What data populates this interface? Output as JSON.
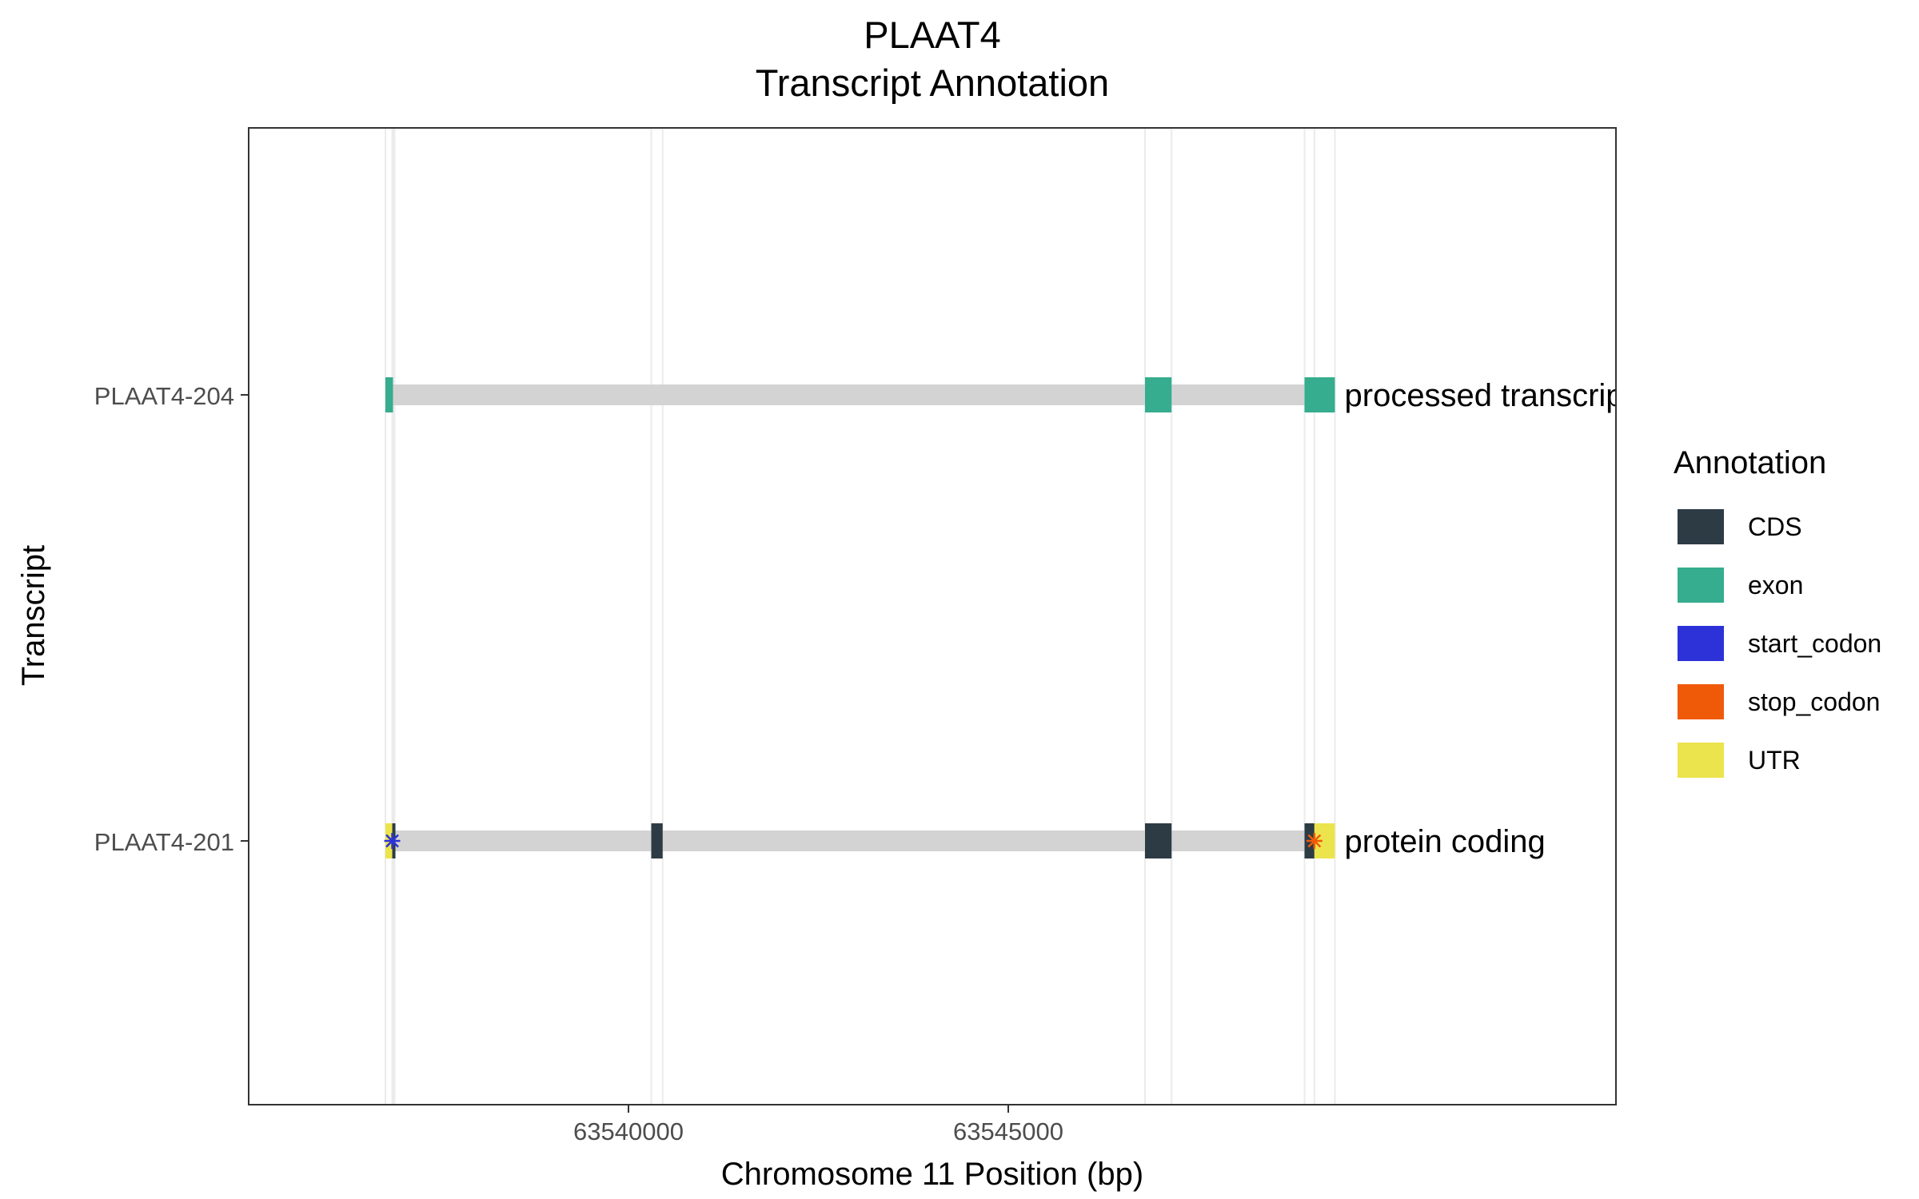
{
  "chart_data": {
    "type": "gene-track",
    "title": "PLAAT4",
    "subtitle": "Transcript Annotation",
    "xlabel": "Chromosome 11 Position (bp)",
    "ylabel": "Transcript",
    "xlim": [
      63535000,
      63553000
    ],
    "xticks": [
      63540000,
      63545000
    ],
    "xtick_labels": [
      "63540000",
      "63545000"
    ],
    "grid": true,
    "legend": {
      "title": "Annotation",
      "position": "right",
      "entries": [
        {
          "label": "CDS",
          "color": "#2d3b45"
        },
        {
          "label": "exon",
          "color": "#35ad8e"
        },
        {
          "label": "start_codon",
          "color": "#2c32d8"
        },
        {
          "label": "stop_codon",
          "color": "#ef5a09"
        },
        {
          "label": "UTR",
          "color": "#ece44c"
        }
      ]
    },
    "intron_color": "#d3d3d3",
    "transcripts": [
      {
        "name": "PLAAT4-204",
        "biotype_label": "processed transcript",
        "start": 63536800,
        "end": 63549300,
        "features": [
          {
            "type": "exon",
            "start": 63536800,
            "end": 63536900
          },
          {
            "type": "exon",
            "start": 63546800,
            "end": 63547150
          },
          {
            "type": "exon",
            "start": 63548900,
            "end": 63549300
          }
        ]
      },
      {
        "name": "PLAAT4-201",
        "biotype_label": "protein coding",
        "start": 63536800,
        "end": 63549300,
        "features": [
          {
            "type": "UTR",
            "start": 63536800,
            "end": 63536890
          },
          {
            "type": "CDS",
            "start": 63536890,
            "end": 63536920
          },
          {
            "type": "CDS",
            "start": 63540300,
            "end": 63540450
          },
          {
            "type": "CDS",
            "start": 63546800,
            "end": 63547150
          },
          {
            "type": "CDS",
            "start": 63548900,
            "end": 63549030
          },
          {
            "type": "UTR",
            "start": 63549030,
            "end": 63549300
          },
          {
            "type": "start_codon",
            "position": 63536890
          },
          {
            "type": "stop_codon",
            "position": 63549030
          }
        ]
      }
    ]
  }
}
